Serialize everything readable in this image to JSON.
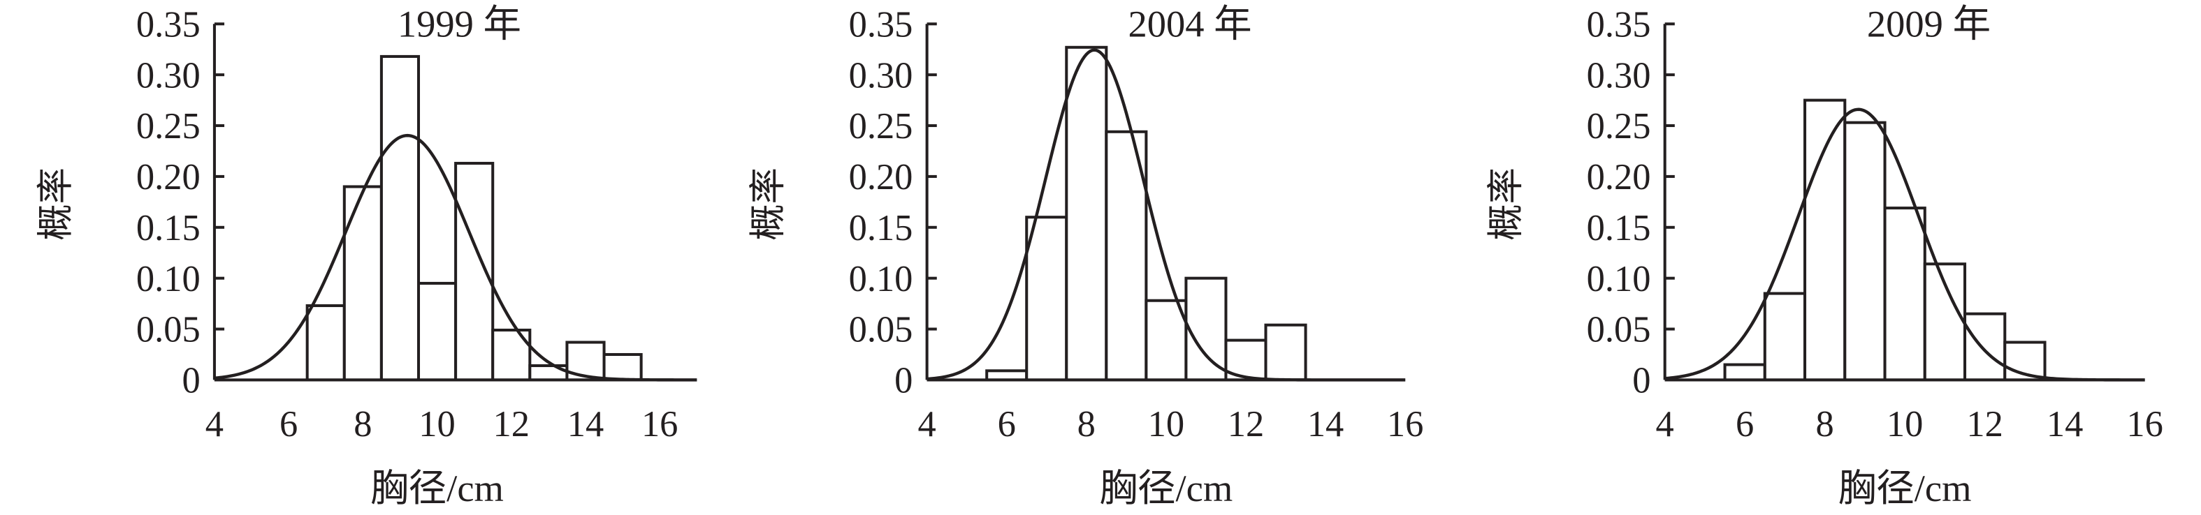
{
  "chart_data": [
    {
      "type": "bar",
      "title": "1999 年",
      "xlabel": "胸径/cm",
      "ylabel": "概率",
      "xlim": [
        4,
        17
      ],
      "ylim": [
        0,
        0.35
      ],
      "xticks": [
        "4",
        "6",
        "8",
        "10",
        "12",
        "14",
        "16"
      ],
      "yticks": [
        "0",
        "0.05",
        "0.10",
        "0.15",
        "0.20",
        "0.25",
        "0.30",
        "0.35"
      ],
      "bins": [
        [
          6.5,
          7.5
        ],
        [
          7.5,
          8.5
        ],
        [
          8.5,
          9.5
        ],
        [
          9.5,
          10.5
        ],
        [
          10.5,
          11.5
        ],
        [
          11.5,
          12.5
        ],
        [
          12.5,
          13.5
        ],
        [
          13.5,
          14.5
        ],
        [
          14.5,
          15.5
        ]
      ],
      "values": [
        0.073,
        0.19,
        0.318,
        0.095,
        0.213,
        0.049,
        0.014,
        0.037,
        0.025
      ],
      "fit_curve": {
        "type": "normal",
        "mean": 9.2,
        "sd": 1.66
      }
    },
    {
      "type": "bar",
      "title": "2004 年",
      "xlabel": "胸径/cm",
      "ylabel": "概率",
      "xlim": [
        4,
        16
      ],
      "ylim": [
        0,
        0.35
      ],
      "xticks": [
        "4",
        "6",
        "8",
        "10",
        "12",
        "14",
        "16"
      ],
      "yticks": [
        "0",
        "0.05",
        "0.10",
        "0.15",
        "0.20",
        "0.25",
        "0.30",
        "0.35"
      ],
      "bins": [
        [
          5.5,
          6.5
        ],
        [
          6.5,
          7.5
        ],
        [
          7.5,
          8.5
        ],
        [
          8.5,
          9.5
        ],
        [
          9.5,
          10.5
        ],
        [
          10.5,
          11.5
        ],
        [
          11.5,
          12.5
        ],
        [
          12.5,
          13.5
        ]
      ],
      "values": [
        0.009,
        0.16,
        0.327,
        0.244,
        0.078,
        0.1,
        0.039,
        0.054
      ],
      "fit_curve": {
        "type": "normal",
        "mean": 8.2,
        "sd": 1.23
      }
    },
    {
      "type": "bar",
      "title": "2009 年",
      "xlabel": "胸径/cm",
      "ylabel": "概率",
      "xlim": [
        4,
        16
      ],
      "ylim": [
        0,
        0.35
      ],
      "xticks": [
        "4",
        "6",
        "8",
        "10",
        "12",
        "14",
        "16"
      ],
      "yticks": [
        "0",
        "0.05",
        "0.10",
        "0.15",
        "0.20",
        "0.25",
        "0.30",
        "0.35"
      ],
      "bins": [
        [
          5.5,
          6.5
        ],
        [
          6.5,
          7.5
        ],
        [
          7.5,
          8.5
        ],
        [
          8.5,
          9.5
        ],
        [
          9.5,
          10.5
        ],
        [
          10.5,
          11.5
        ],
        [
          11.5,
          12.5
        ],
        [
          12.5,
          13.5
        ]
      ],
      "values": [
        0.015,
        0.085,
        0.275,
        0.253,
        0.169,
        0.114,
        0.065,
        0.037
      ],
      "fit_curve": {
        "type": "normal",
        "mean": 8.84,
        "sd": 1.5
      }
    }
  ]
}
